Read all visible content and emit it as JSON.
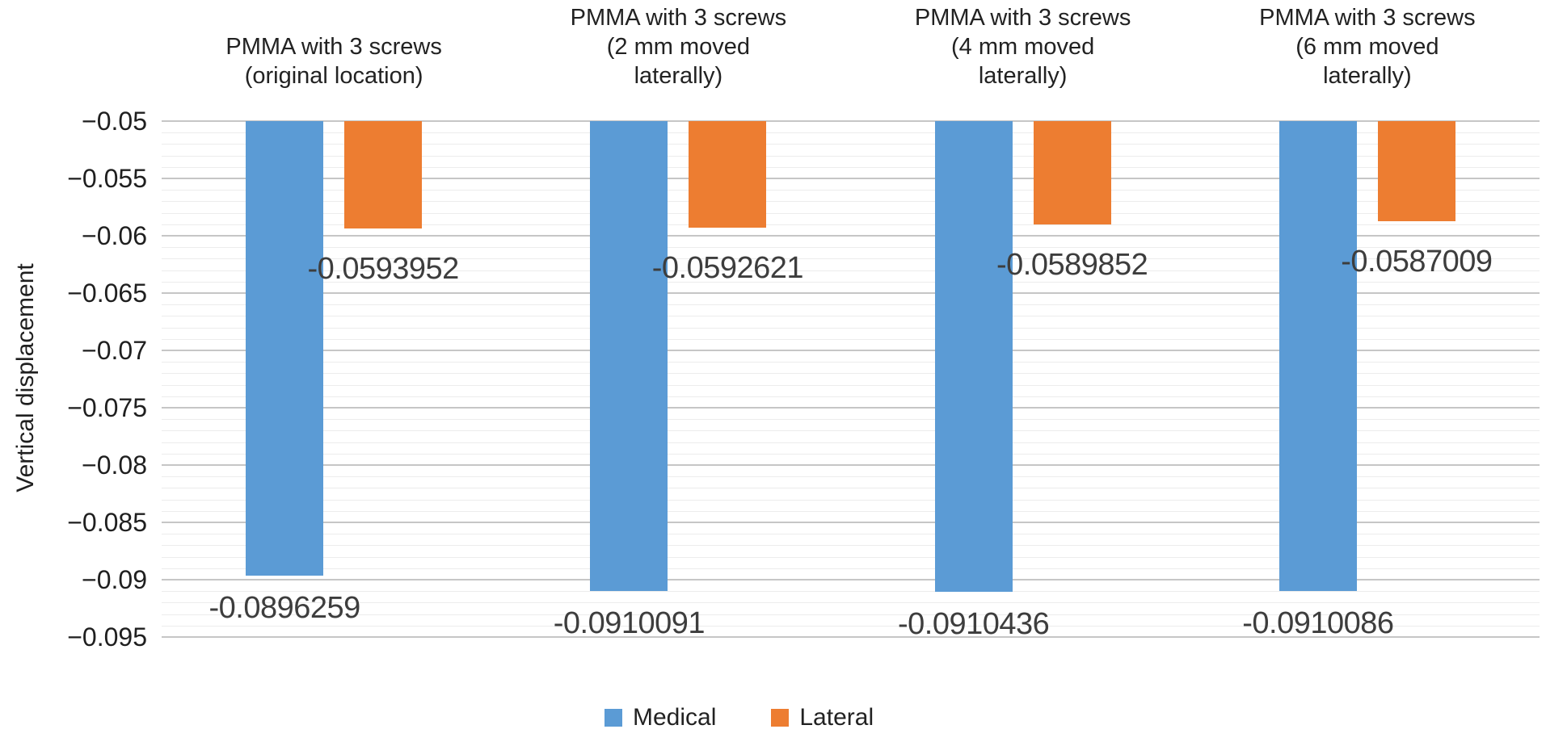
{
  "chart_data": {
    "type": "bar",
    "title": "",
    "xlabel": "",
    "ylabel": "Vertical displacement",
    "categories": [
      {
        "lines": [
          "PMMA with 3 screws",
          "(original location)"
        ]
      },
      {
        "lines": [
          "PMMA with 3 screws",
          "(2 mm moved",
          "laterally)"
        ]
      },
      {
        "lines": [
          "PMMA with 3 screws",
          "(4 mm moved",
          "laterally)"
        ]
      },
      {
        "lines": [
          "PMMA with 3 screws",
          "(6 mm moved",
          "laterally)"
        ]
      }
    ],
    "series": [
      {
        "name": "Medical",
        "color": "#5B9BD5",
        "values": [
          -0.0896259,
          -0.0910091,
          -0.0910436,
          -0.0910086
        ],
        "labels": [
          "-0.0896259",
          "-0.0910091",
          "-0.0910436",
          "-0.0910086"
        ]
      },
      {
        "name": "Lateral",
        "color": "#ED7D31",
        "values": [
          -0.0593952,
          -0.0592621,
          -0.0589852,
          -0.0587009
        ],
        "labels": [
          "-0.0593952",
          "-0.0592621",
          "-0.0589852",
          "-0.0587009"
        ]
      }
    ],
    "y_axis": {
      "max": -0.05,
      "min": -0.095,
      "major_unit": 0.005,
      "minor_unit": 0.001,
      "tick_labels": [
        "−0.05",
        "−0.055",
        "−0.06",
        "−0.065",
        "−0.07",
        "−0.075",
        "−0.08",
        "−0.085",
        "−0.09",
        "−0.095"
      ]
    },
    "grid": {
      "major_color": "#c6c6c6",
      "minor_color": "#ececec",
      "enabled": true
    },
    "legend": {
      "position": "bottom",
      "entries": [
        "Medical",
        "Lateral"
      ]
    }
  }
}
